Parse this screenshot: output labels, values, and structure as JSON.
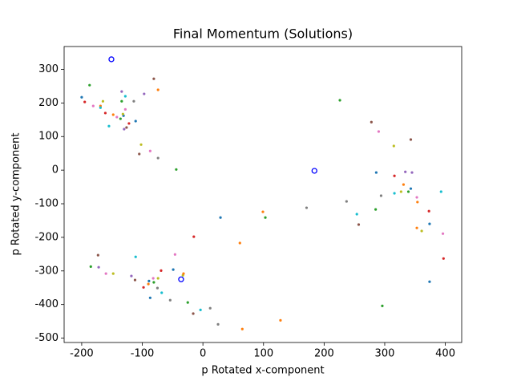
{
  "chart_data": {
    "type": "scatter",
    "title": "Final Momentum (Solutions)",
    "x_label": "p Rotated x-component",
    "y_label": "p Rotated y-component",
    "xlim": [
      -229,
      427
    ],
    "ylim": [
      -513,
      368
    ],
    "xticks": [
      -200,
      -100,
      0,
      100,
      200,
      300,
      400
    ],
    "yticks": [
      -500,
      -400,
      -300,
      -200,
      -100,
      0,
      100,
      200,
      300
    ],
    "series": [
      {
        "filled": true,
        "x": [
          -200,
          -187,
          -195,
          -181,
          -169,
          -165,
          -169,
          -161,
          -155,
          -134,
          -128,
          -134,
          -114,
          -97,
          -81,
          -74,
          -148,
          -142,
          -136,
          -131,
          -132,
          -128,
          -122,
          -126,
          -130,
          -111,
          -102,
          -105,
          -87,
          -74,
          -44,
          -15,
          29,
          61,
          99,
          103,
          171,
          226,
          237,
          254,
          257,
          278,
          290,
          285,
          286,
          294,
          296,
          315,
          316,
          316,
          331,
          327,
          334,
          339,
          343,
          345,
          343,
          353,
          354,
          353,
          361,
          373,
          374,
          374,
          393,
          396,
          397,
          -185,
          -173,
          -172,
          -160,
          -148,
          -118,
          -112,
          -111,
          -98,
          -90,
          -89,
          -82,
          -81,
          -74,
          -75,
          -87,
          -68,
          -69,
          -49,
          -46,
          -54,
          -33,
          -32,
          -25,
          -16,
          -4,
          12,
          25,
          65,
          128
        ],
        "y": [
          217,
          253,
          203,
          191,
          191,
          205,
          186,
          170,
          131,
          234,
          220,
          205,
          205,
          227,
          272,
          239,
          165,
          158,
          153,
          162,
          167,
          181,
          139,
          127,
          122,
          146,
          76,
          48,
          57,
          36,
          2,
          -198,
          -141,
          -217,
          -124,
          -141,
          -112,
          208,
          -93,
          -131,
          -162,
          143,
          115,
          -117,
          -7,
          -76,
          -404,
          72,
          -17,
          -69,
          -43,
          -64,
          -5,
          -64,
          -55,
          -7,
          91,
          -81,
          -95,
          -172,
          -181,
          -122,
          -160,
          -332,
          -64,
          -189,
          -263,
          -287,
          -253,
          -289,
          -308,
          -308,
          -315,
          -327,
          -258,
          -349,
          -339,
          -330,
          -322,
          -334,
          -322,
          -351,
          -380,
          -365,
          -299,
          -296,
          -251,
          -387,
          -313,
          -308,
          -394,
          -427,
          -416,
          -411,
          -459,
          -473,
          -447
        ],
        "colors": [
          "#1f77b4",
          "#2ca02c",
          "#d62728",
          "#e377c2",
          "#ff7f0e",
          "#bcbd22",
          "#17becf",
          "#d62728",
          "#17becf",
          "#9467bd",
          "#17becf",
          "#2ca02c",
          "#7f7f7f",
          "#9467bd",
          "#8c564b",
          "#ff7f0e",
          "#ff7f0e",
          "#e377c2",
          "#2ca02c",
          "#1f77b4",
          "#bcbd22",
          "#e377c2",
          "#d62728",
          "#8c564b",
          "#9467bd",
          "#1f77b4",
          "#bcbd22",
          "#8c564b",
          "#e377c2",
          "#7f7f7f",
          "#2ca02c",
          "#d62728",
          "#1f77b4",
          "#ff7f0e",
          "#ff7f0e",
          "#2ca02c",
          "#7f7f7f",
          "#2ca02c",
          "#7f7f7f",
          "#17becf",
          "#8c564b",
          "#8c564b",
          "#e377c2",
          "#2ca02c",
          "#1f77b4",
          "#7f7f7f",
          "#2ca02c",
          "#bcbd22",
          "#d62728",
          "#17becf",
          "#ff7f0e",
          "#bcbd22",
          "#9467bd",
          "#2ca02c",
          "#1f77b4",
          "#9467bd",
          "#8c564b",
          "#e377c2",
          "#ff7f0e",
          "#ff7f0e",
          "#bcbd22",
          "#d62728",
          "#1f77b4",
          "#1f77b4",
          "#17becf",
          "#e377c2",
          "#d62728",
          "#2ca02c",
          "#8c564b",
          "#9467bd",
          "#e377c2",
          "#bcbd22",
          "#9467bd",
          "#8c564b",
          "#17becf",
          "#d62728",
          "#ff7f0e",
          "#1f77b4",
          "#e377c2",
          "#2ca02c",
          "#bcbd22",
          "#7f7f7f",
          "#1f77b4",
          "#17becf",
          "#d62728",
          "#1f77b4",
          "#e377c2",
          "#7f7f7f",
          "#bcbd22",
          "#ff7f0e",
          "#2ca02c",
          "#8c564b",
          "#17becf",
          "#7f7f7f",
          "#7f7f7f",
          "#ff7f0e",
          "#ff7f0e"
        ]
      },
      {
        "filled": false,
        "color": "#0000ff",
        "x": [
          -151,
          184,
          -36
        ],
        "y": [
          330,
          -2,
          -325
        ]
      }
    ]
  }
}
